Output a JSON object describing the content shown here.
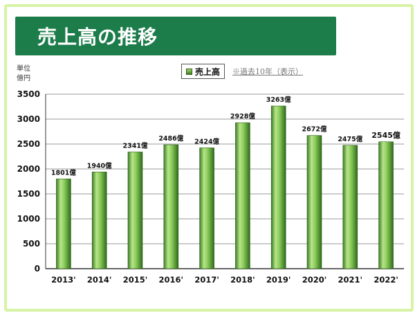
{
  "header": {
    "title": "売上高の推移",
    "unit": "単位\n億円",
    "legend_label": "売上高",
    "note": "※過去10年（表示）"
  },
  "colors": {
    "title_bg": "#1c7c4a",
    "border": "#d6f3a6",
    "bar_light": "#c6eba0",
    "bar_mid": "#6fb542",
    "bar_dark": "#2e6b1c"
  },
  "chart_data": {
    "type": "bar",
    "categories": [
      "2013'",
      "2014'",
      "2015'",
      "2016'",
      "2017'",
      "2018'",
      "2019'",
      "2020'",
      "2021'",
      "2022'"
    ],
    "values": [
      1801,
      1940,
      2341,
      2486,
      2424,
      2928,
      3263,
      2672,
      2475,
      2545
    ],
    "value_labels": [
      "1801億",
      "1940億",
      "2341億",
      "2486億",
      "2424億",
      "2928億",
      "3263億",
      "2672億",
      "2475億",
      "2545億"
    ],
    "ylim": [
      0,
      3500
    ],
    "yticks": [
      "0",
      "500",
      "1000",
      "1500",
      "2000",
      "2500",
      "3000",
      "3500"
    ],
    "grid": true,
    "series": [
      {
        "name": "売上高",
        "values": [
          1801,
          1940,
          2341,
          2486,
          2424,
          2928,
          3263,
          2672,
          2475,
          2545
        ]
      }
    ]
  }
}
